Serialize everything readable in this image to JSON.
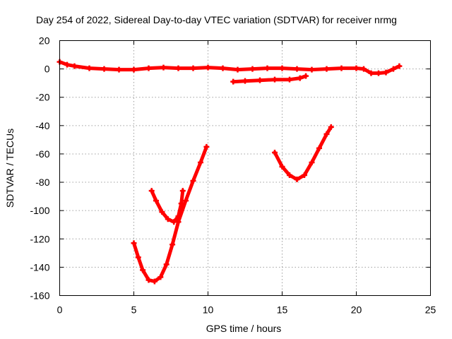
{
  "chart_data": {
    "type": "scatter",
    "title": "Day 254 of 2022, Sidereal Day-to-day VTEC variation (SDTVAR) for receiver nrmg",
    "xlabel": "GPS time / hours",
    "ylabel": "SDTVAR / TECUs",
    "xlim": [
      0,
      25
    ],
    "ylim": [
      -160,
      20
    ],
    "xticks": [
      0,
      5,
      10,
      15,
      20,
      25
    ],
    "yticks": [
      20,
      0,
      -20,
      -40,
      -60,
      -80,
      -100,
      -120,
      -140,
      -160
    ],
    "grid": true,
    "color": "#ff0000",
    "series": [
      {
        "name": "track-main-near-zero",
        "points": [
          [
            0,
            5
          ],
          [
            0.5,
            3
          ],
          [
            1,
            2
          ],
          [
            2,
            0.5
          ],
          [
            3,
            0
          ],
          [
            4,
            -0.5
          ],
          [
            5,
            -0.5
          ],
          [
            6,
            0.5
          ],
          [
            7,
            1
          ],
          [
            8,
            0.5
          ],
          [
            9,
            0.5
          ],
          [
            10,
            1
          ],
          [
            11,
            0.5
          ],
          [
            12,
            -0.5
          ],
          [
            13,
            0
          ],
          [
            14,
            0.5
          ],
          [
            15,
            0.5
          ],
          [
            16,
            0
          ],
          [
            17,
            -0.5
          ],
          [
            18,
            0
          ],
          [
            19,
            0.5
          ],
          [
            20,
            0.5
          ],
          [
            20.5,
            0
          ],
          [
            21,
            -3
          ],
          [
            21.5,
            -3
          ],
          [
            22,
            -2.5
          ],
          [
            22.5,
            0
          ],
          [
            22.9,
            2
          ]
        ]
      },
      {
        "name": "track-offset-minus-8",
        "points": [
          [
            11.7,
            -9
          ],
          [
            12.5,
            -8.5
          ],
          [
            13.5,
            -8
          ],
          [
            14.5,
            -7.5
          ],
          [
            15.5,
            -7.5
          ],
          [
            16.2,
            -6.5
          ],
          [
            16.6,
            -5
          ]
        ]
      },
      {
        "name": "track-arc-5-to-10",
        "points": [
          [
            5,
            -123
          ],
          [
            5.3,
            -133
          ],
          [
            5.6,
            -142
          ],
          [
            6,
            -149
          ],
          [
            6.4,
            -150
          ],
          [
            6.8,
            -147
          ],
          [
            7.2,
            -138
          ],
          [
            7.6,
            -124
          ],
          [
            8,
            -108
          ],
          [
            8.5,
            -93
          ],
          [
            9,
            -79
          ],
          [
            9.5,
            -66
          ],
          [
            9.9,
            -55
          ]
        ]
      },
      {
        "name": "track-arc-6-to-8",
        "points": [
          [
            6.2,
            -86
          ],
          [
            6.5,
            -93
          ],
          [
            6.9,
            -101
          ],
          [
            7.3,
            -106
          ],
          [
            7.7,
            -108
          ],
          [
            8,
            -104
          ],
          [
            8.2,
            -95
          ],
          [
            8.3,
            -86
          ]
        ]
      },
      {
        "name": "track-arc-14-to-18",
        "points": [
          [
            14.5,
            -59
          ],
          [
            15,
            -69
          ],
          [
            15.5,
            -75
          ],
          [
            16,
            -78
          ],
          [
            16.5,
            -75
          ],
          [
            17,
            -66
          ],
          [
            17.5,
            -56
          ],
          [
            18,
            -46
          ],
          [
            18.3,
            -41
          ]
        ]
      }
    ]
  }
}
